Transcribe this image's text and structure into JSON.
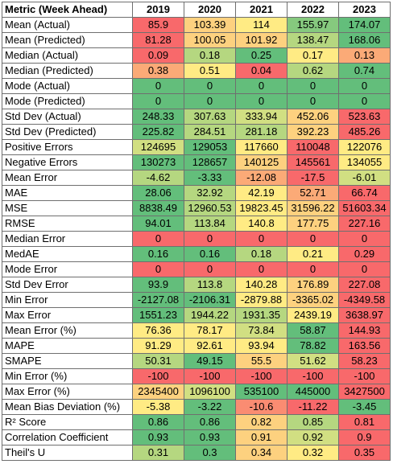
{
  "header": [
    "Metric (Week Ahead)",
    "2019",
    "2020",
    "2021",
    "2022",
    "2023"
  ],
  "colors": {
    "deep_green": "#63be7b",
    "green": "#86c97e",
    "light_green": "#b5d780",
    "yellow_green": "#d1df82",
    "yellow": "#ffeb84",
    "light_orange": "#fdd17f",
    "orange": "#fbaa77",
    "light_red": "#fa8c72",
    "red": "#f8696b"
  },
  "rows": [
    {
      "label": "Mean (Actual)",
      "values": [
        "85.9",
        "103.39",
        "114",
        "155.97",
        "174.07"
      ],
      "colors": [
        "red",
        "light_orange",
        "yellow",
        "green",
        "deep_green"
      ]
    },
    {
      "label": "Mean (Predicted)",
      "values": [
        "81.28",
        "100.05",
        "101.92",
        "138.47",
        "168.06"
      ],
      "colors": [
        "red",
        "light_orange",
        "light_orange",
        "light_green",
        "deep_green"
      ]
    },
    {
      "label": "Median (Actual)",
      "values": [
        "0.09",
        "0.18",
        "0.25",
        "0.17",
        "0.13"
      ],
      "colors": [
        "red",
        "light_green",
        "deep_green",
        "yellow",
        "orange"
      ]
    },
    {
      "label": "Median (Predicted)",
      "values": [
        "0.38",
        "0.51",
        "0.04",
        "0.62",
        "0.74"
      ],
      "colors": [
        "orange",
        "yellow",
        "red",
        "light_green",
        "deep_green"
      ]
    },
    {
      "label": "Mode (Actual)",
      "values": [
        "0",
        "0",
        "0",
        "0",
        "0"
      ],
      "colors": [
        "deep_green",
        "deep_green",
        "deep_green",
        "deep_green",
        "deep_green"
      ]
    },
    {
      "label": "Mode (Predicted)",
      "values": [
        "0",
        "0",
        "0",
        "0",
        "0"
      ],
      "colors": [
        "deep_green",
        "deep_green",
        "deep_green",
        "deep_green",
        "deep_green"
      ]
    },
    {
      "label": "Std Dev (Actual)",
      "values": [
        "248.33",
        "307.63",
        "333.94",
        "452.06",
        "523.63"
      ],
      "colors": [
        "deep_green",
        "light_green",
        "yellow_green",
        "light_orange",
        "red"
      ]
    },
    {
      "label": "Std Dev (Predicted)",
      "values": [
        "225.82",
        "284.51",
        "281.18",
        "392.23",
        "485.26"
      ],
      "colors": [
        "deep_green",
        "light_green",
        "light_green",
        "light_orange",
        "red"
      ]
    },
    {
      "label": "Positive Errors",
      "values": [
        "124695",
        "129053",
        "117660",
        "110048",
        "122076"
      ],
      "colors": [
        "yellow_green",
        "deep_green",
        "yellow",
        "red",
        "yellow"
      ]
    },
    {
      "label": "Negative Errors",
      "values": [
        "130273",
        "128657",
        "140125",
        "145561",
        "134055"
      ],
      "colors": [
        "deep_green",
        "deep_green",
        "light_orange",
        "red",
        "yellow"
      ]
    },
    {
      "label": "Mean Error",
      "values": [
        "-4.62",
        "-3.33",
        "-12.08",
        "-17.5",
        "-6.01"
      ],
      "colors": [
        "light_green",
        "deep_green",
        "orange",
        "red",
        "yellow_green"
      ]
    },
    {
      "label": "MAE",
      "values": [
        "28.06",
        "32.92",
        "42.19",
        "52.71",
        "66.74"
      ],
      "colors": [
        "deep_green",
        "light_green",
        "yellow",
        "orange",
        "red"
      ]
    },
    {
      "label": "MSE",
      "values": [
        "8838.49",
        "12960.53",
        "19823.45",
        "31596.22",
        "51603.34"
      ],
      "colors": [
        "deep_green",
        "light_green",
        "yellow",
        "light_orange",
        "red"
      ]
    },
    {
      "label": "RMSE",
      "values": [
        "94.01",
        "113.84",
        "140.8",
        "177.75",
        "227.16"
      ],
      "colors": [
        "deep_green",
        "light_green",
        "yellow",
        "light_orange",
        "red"
      ]
    },
    {
      "label": "Median Error",
      "values": [
        "0",
        "0",
        "0",
        "0",
        "0"
      ],
      "colors": [
        "red",
        "red",
        "red",
        "red",
        "red"
      ]
    },
    {
      "label": "MedAE",
      "values": [
        "0.16",
        "0.16",
        "0.18",
        "0.21",
        "0.29"
      ],
      "colors": [
        "deep_green",
        "deep_green",
        "light_green",
        "yellow",
        "red"
      ]
    },
    {
      "label": "Mode Error",
      "values": [
        "0",
        "0",
        "0",
        "0",
        "0"
      ],
      "colors": [
        "red",
        "red",
        "red",
        "red",
        "red"
      ]
    },
    {
      "label": "Std Dev Error",
      "values": [
        "93.9",
        "113.8",
        "140.28",
        "176.89",
        "227.08"
      ],
      "colors": [
        "deep_green",
        "light_green",
        "yellow",
        "light_orange",
        "red"
      ]
    },
    {
      "label": "Min Error",
      "values": [
        "-2127.08",
        "-2106.31",
        "-2879.88",
        "-3365.02",
        "-4349.58"
      ],
      "colors": [
        "deep_green",
        "deep_green",
        "yellow",
        "light_orange",
        "red"
      ]
    },
    {
      "label": "Max Error",
      "values": [
        "1551.23",
        "1944.22",
        "1931.35",
        "2439.19",
        "3638.97"
      ],
      "colors": [
        "deep_green",
        "light_green",
        "light_green",
        "yellow",
        "red"
      ]
    },
    {
      "label": "Mean Error (%)",
      "values": [
        "76.36",
        "78.17",
        "73.84",
        "58.87",
        "144.93"
      ],
      "colors": [
        "yellow",
        "yellow",
        "yellow_green",
        "deep_green",
        "red"
      ]
    },
    {
      "label": "MAPE",
      "values": [
        "91.29",
        "92.61",
        "93.94",
        "78.82",
        "163.56"
      ],
      "colors": [
        "yellow",
        "yellow",
        "yellow",
        "deep_green",
        "red"
      ]
    },
    {
      "label": "SMAPE",
      "values": [
        "50.31",
        "49.15",
        "55.5",
        "51.62",
        "58.23"
      ],
      "colors": [
        "light_green",
        "deep_green",
        "light_orange",
        "yellow_green",
        "red"
      ]
    },
    {
      "label": "Min Error (%)",
      "values": [
        "-100",
        "-100",
        "-100",
        "-100",
        "-100"
      ],
      "colors": [
        "red",
        "red",
        "red",
        "red",
        "red"
      ]
    },
    {
      "label": "Max Error (%)",
      "values": [
        "2345400",
        "1096100",
        "535100",
        "445000",
        "3427500"
      ],
      "colors": [
        "light_orange",
        "yellow_green",
        "deep_green",
        "deep_green",
        "red"
      ]
    },
    {
      "label": "Mean Bias Deviation (%)",
      "values": [
        "-5.38",
        "-3.22",
        "-10.6",
        "-11.22",
        "-3.45"
      ],
      "colors": [
        "yellow",
        "deep_green",
        "light_red",
        "red",
        "deep_green"
      ]
    },
    {
      "label": "R² Score",
      "values": [
        "0.86",
        "0.86",
        "0.82",
        "0.85",
        "0.81"
      ],
      "colors": [
        "deep_green",
        "deep_green",
        "light_orange",
        "light_green",
        "red"
      ]
    },
    {
      "label": "Correlation Coefficient",
      "values": [
        "0.93",
        "0.93",
        "0.91",
        "0.92",
        "0.9"
      ],
      "colors": [
        "deep_green",
        "deep_green",
        "light_orange",
        "yellow_green",
        "red"
      ]
    },
    {
      "label": "Theil's U",
      "values": [
        "0.31",
        "0.3",
        "0.34",
        "0.32",
        "0.35"
      ],
      "colors": [
        "light_green",
        "deep_green",
        "light_orange",
        "yellow",
        "red"
      ]
    }
  ]
}
